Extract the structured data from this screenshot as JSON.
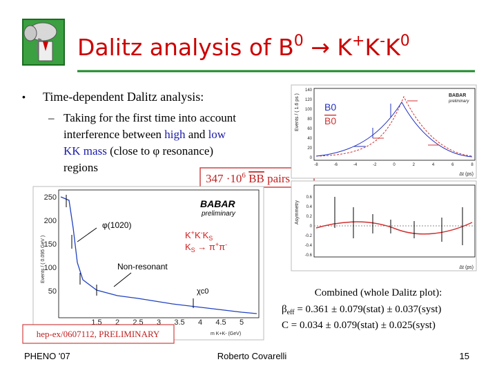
{
  "header": {
    "title": [
      "Dalitz analysis of B",
      "0",
      " → K",
      "+",
      "K",
      "-",
      "K",
      "0"
    ]
  },
  "bullet": {
    "text": "Time-dependent Dalitz analysis:",
    "sub": [
      [
        "Taking for the first time into account"
      ],
      [
        "interference between ",
        "high",
        " and ",
        "low"
      ],
      [
        "KK mass",
        " (close to ",
        "φ",
        " resonance)"
      ],
      [
        "regions"
      ]
    ]
  },
  "sample": [
    "347 ·10",
    "6",
    " ",
    "BB",
    " pairs"
  ],
  "dt_plot": {
    "ylabel": "Events / ( 1.6 ps )",
    "xlabel": "Δt (ps)",
    "yticks": [
      "140",
      "120",
      "100",
      "80",
      "60",
      "40",
      "20",
      "0"
    ],
    "xticks": [
      "-8",
      "-6",
      "-4",
      "-2",
      "0",
      "2",
      "4",
      "6",
      "8"
    ],
    "brand": "BABAR",
    "status": "preliminary",
    "legend": [
      "B0",
      "B0"
    ]
  },
  "asym_plot": {
    "ylabel": "Asymmetry",
    "xlabel": "Δt (ps)",
    "yticks": [
      "0.6",
      "0.4",
      "0.2",
      "0",
      "-0.2",
      "-0.4",
      "-0.6"
    ]
  },
  "mass_plot": {
    "ylabel": "Events / ( 0.095 GeV )",
    "xlabel": "m K+K- (GeV)",
    "yticks": [
      "250",
      "200",
      "150",
      "100",
      "50"
    ],
    "xticks": [
      "1.5",
      "2",
      "2.5",
      "3",
      "3.5",
      "4",
      "4.5",
      "5"
    ],
    "brand": "BABAR",
    "status": "preliminary",
    "peaks": [
      "φ(1020)",
      "Non-resonant",
      "χc0"
    ]
  },
  "mode": [
    "K",
    "+",
    "K",
    "-",
    "K",
    "S"
  ],
  "decay": [
    "K",
    "S",
    " → ",
    "π",
    "+",
    "π",
    "-"
  ],
  "reference": "hep-ex/0607112, PRELIMINARY",
  "result": {
    "heading": "Combined (whole Dalitz plot):",
    "beta": [
      "β",
      "eff",
      " =  0.361 ± 0.079(stat) ± 0.037(syst)"
    ],
    "c": "C  =  0.034 ± 0.079(stat) ± 0.025(syst)"
  },
  "footer": {
    "left": "PHENO '07",
    "center": "Roberto Covarelli",
    "page": "15"
  }
}
